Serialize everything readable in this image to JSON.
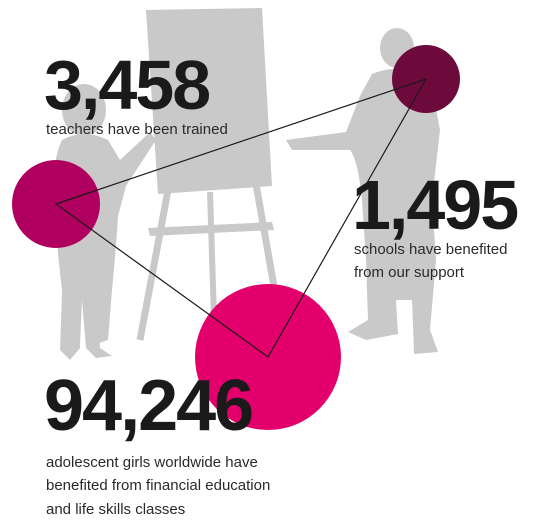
{
  "colors": {
    "silhouette": "#c9c9c9",
    "accent_dark": "#6d0a3c",
    "accent_mid": "#b0005f",
    "accent_bright": "#e3006c",
    "text": "#1a1a1a"
  },
  "stats": [
    {
      "number": "3,458",
      "label_lines": [
        "teachers have been trained"
      ]
    },
    {
      "number": "1,495",
      "label_lines": [
        "schools have benefited",
        "from our support"
      ]
    },
    {
      "number": "94,246",
      "label_lines": [
        "adolescent girls worldwide have",
        "benefited from financial education",
        "and life skills classes"
      ]
    }
  ],
  "illustration": {
    "figures": [
      "woman-silhouette",
      "flipchart-silhouette",
      "man-silhouette"
    ],
    "circles": [
      "circle-small-dark",
      "circle-medium-magenta",
      "circle-large-pink"
    ]
  }
}
